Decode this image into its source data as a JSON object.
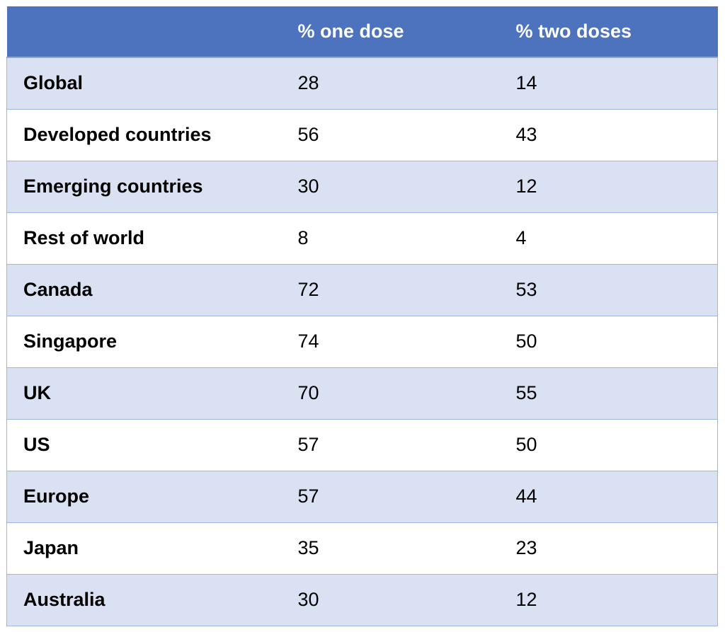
{
  "table": {
    "headers": [
      "",
      "% one dose",
      "% two doses"
    ],
    "rows": [
      {
        "label": "Global",
        "one_dose": "28",
        "two_doses": "14"
      },
      {
        "label": "Developed countries",
        "one_dose": "56",
        "two_doses": "43"
      },
      {
        "label": "Emerging countries",
        "one_dose": "30",
        "two_doses": "12"
      },
      {
        "label": "Rest of world",
        "one_dose": "8",
        "two_doses": "4"
      },
      {
        "label": "Canada",
        "one_dose": "72",
        "two_doses": "53"
      },
      {
        "label": "Singapore",
        "one_dose": "74",
        "two_doses": "50"
      },
      {
        "label": "UK",
        "one_dose": "70",
        "two_doses": "55"
      },
      {
        "label": "US",
        "one_dose": "57",
        "two_doses": "50"
      },
      {
        "label": "Europe",
        "one_dose": "57",
        "two_doses": "44"
      },
      {
        "label": "Japan",
        "one_dose": "35",
        "two_doses": "23"
      },
      {
        "label": "Australia",
        "one_dose": "30",
        "two_doses": "12"
      }
    ]
  },
  "colors": {
    "header_bg": "#4e73be",
    "row_band": "#d9e1f2",
    "row_plain": "#ffffff",
    "border": "#9fb4de"
  }
}
